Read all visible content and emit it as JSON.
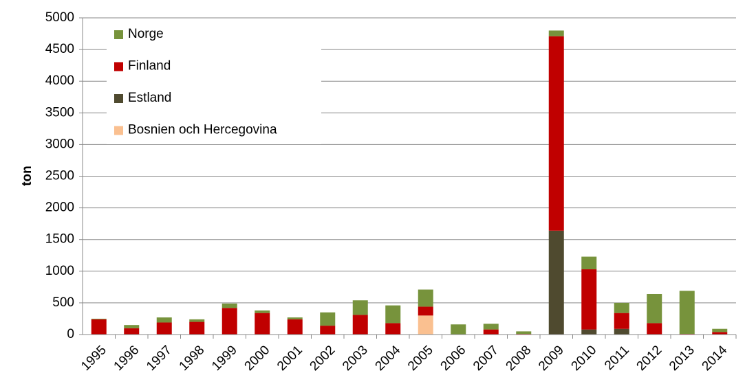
{
  "chart_data": {
    "type": "stacked_bar",
    "y_label": "ton",
    "categories": [
      "1995",
      "1996",
      "1997",
      "1998",
      "1999",
      "2000",
      "2001",
      "2002",
      "2003",
      "2004",
      "2005",
      "2006",
      "2007",
      "2008",
      "2009",
      "2010",
      "2011",
      "2012",
      "2013",
      "2014"
    ],
    "series": [
      {
        "name": "Bosnien och Hercegovina",
        "color": "#fac090",
        "values": [
          0,
          0,
          0,
          0,
          0,
          0,
          0,
          0,
          0,
          0,
          300,
          0,
          0,
          0,
          0,
          0,
          0,
          0,
          0,
          0
        ]
      },
      {
        "name": "Estland",
        "color": "#4f4a2f",
        "values": [
          0,
          0,
          0,
          0,
          0,
          0,
          0,
          0,
          0,
          0,
          0,
          0,
          0,
          0,
          1640,
          80,
          90,
          0,
          0,
          0
        ]
      },
      {
        "name": "Finland",
        "color": "#c00000",
        "values": [
          240,
          100,
          190,
          200,
          420,
          340,
          240,
          140,
          310,
          180,
          140,
          0,
          80,
          10,
          3070,
          950,
          250,
          180,
          10,
          40
        ]
      },
      {
        "name": "Norge",
        "color": "#77933c",
        "values": [
          10,
          50,
          80,
          40,
          70,
          40,
          30,
          210,
          230,
          280,
          270,
          160,
          90,
          40,
          90,
          200,
          160,
          460,
          680,
          50
        ]
      }
    ],
    "ylim": [
      0,
      5000
    ],
    "yticks": [
      0,
      500,
      1000,
      1500,
      2000,
      2500,
      3000,
      3500,
      4000,
      4500,
      5000
    ],
    "grid": true,
    "legend": "top-left"
  }
}
